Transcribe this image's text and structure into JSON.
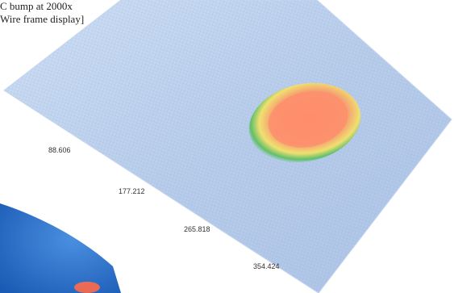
{
  "caption": {
    "line1": "C bump at 2000x",
    "line2": "Wire frame display]"
  },
  "axis_ticks": [
    "88.606",
    "177.212",
    "265.818",
    "354.424"
  ],
  "colors": {
    "surface_fill": "#b9d1ef",
    "wire": "#8ea6d4",
    "bump_core": "#ff8a6a",
    "bump_ring_yellow": "#f0e070",
    "bump_ring_green": "#5fbf6a",
    "corner_blob": "#2a6fc9"
  }
}
